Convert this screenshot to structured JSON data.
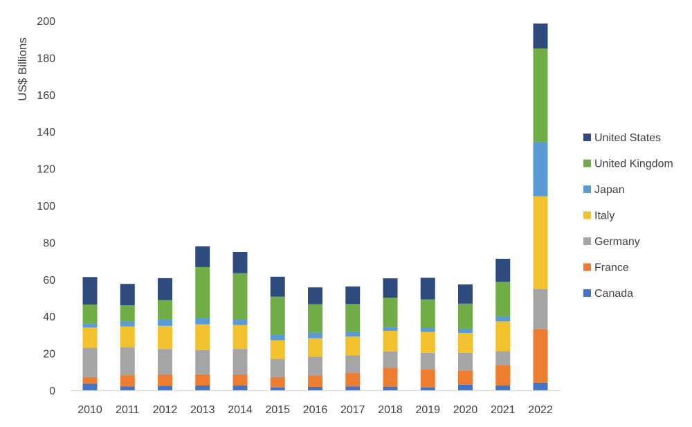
{
  "chart_data": {
    "type": "bar",
    "stacked": true,
    "title": "",
    "xlabel": "",
    "ylabel": "US$ Billions",
    "ylim": [
      0,
      200
    ],
    "yticks": [
      0,
      20,
      40,
      60,
      80,
      100,
      120,
      140,
      160,
      180,
      200
    ],
    "grid": false,
    "legend_position": "right",
    "categories": [
      "2010",
      "2011",
      "2012",
      "2013",
      "2014",
      "2015",
      "2016",
      "2017",
      "2018",
      "2019",
      "2020",
      "2021",
      "2022"
    ],
    "series": [
      {
        "name": "Canada",
        "color": "#4472C4",
        "values": [
          3.6,
          2.1,
          2.4,
          2.6,
          2.7,
          1.6,
          1.9,
          2.1,
          2.0,
          1.6,
          3.1,
          2.7,
          4.2
        ]
      },
      {
        "name": "France",
        "color": "#ED7D31",
        "values": [
          3.6,
          6.1,
          6.2,
          6.1,
          5.9,
          5.6,
          6.2,
          7.4,
          10.2,
          9.9,
          7.6,
          10.8,
          28.9
        ]
      },
      {
        "name": "Germany",
        "color": "#A5A5A5",
        "values": [
          15.8,
          15.0,
          13.8,
          13.1,
          13.8,
          9.8,
          10.1,
          9.5,
          8.9,
          8.8,
          9.6,
          7.7,
          21.6
        ]
      },
      {
        "name": "Italy",
        "color": "#F2C12E",
        "values": [
          11.0,
          11.4,
          12.5,
          13.9,
          12.9,
          10.1,
          10.0,
          10.1,
          11.1,
          11.3,
          10.8,
          16.1,
          50.3
        ]
      },
      {
        "name": "Japan",
        "color": "#5B9BD5",
        "values": [
          2.2,
          2.7,
          3.7,
          3.6,
          2.9,
          2.9,
          3.1,
          2.6,
          2.1,
          2.1,
          2.3,
          2.8,
          29.5
        ]
      },
      {
        "name": "United Kingdom",
        "color": "#70AD47",
        "values": [
          10.2,
          8.7,
          10.2,
          27.4,
          25.2,
          20.7,
          15.3,
          15.0,
          15.8,
          15.5,
          13.5,
          18.7,
          50.5
        ]
      },
      {
        "name": "United States",
        "color": "#2F4A7D",
        "values": [
          14.9,
          11.6,
          11.9,
          11.2,
          11.5,
          10.8,
          9.1,
          9.5,
          10.5,
          11.7,
          10.4,
          12.4,
          13.5
        ]
      }
    ]
  }
}
